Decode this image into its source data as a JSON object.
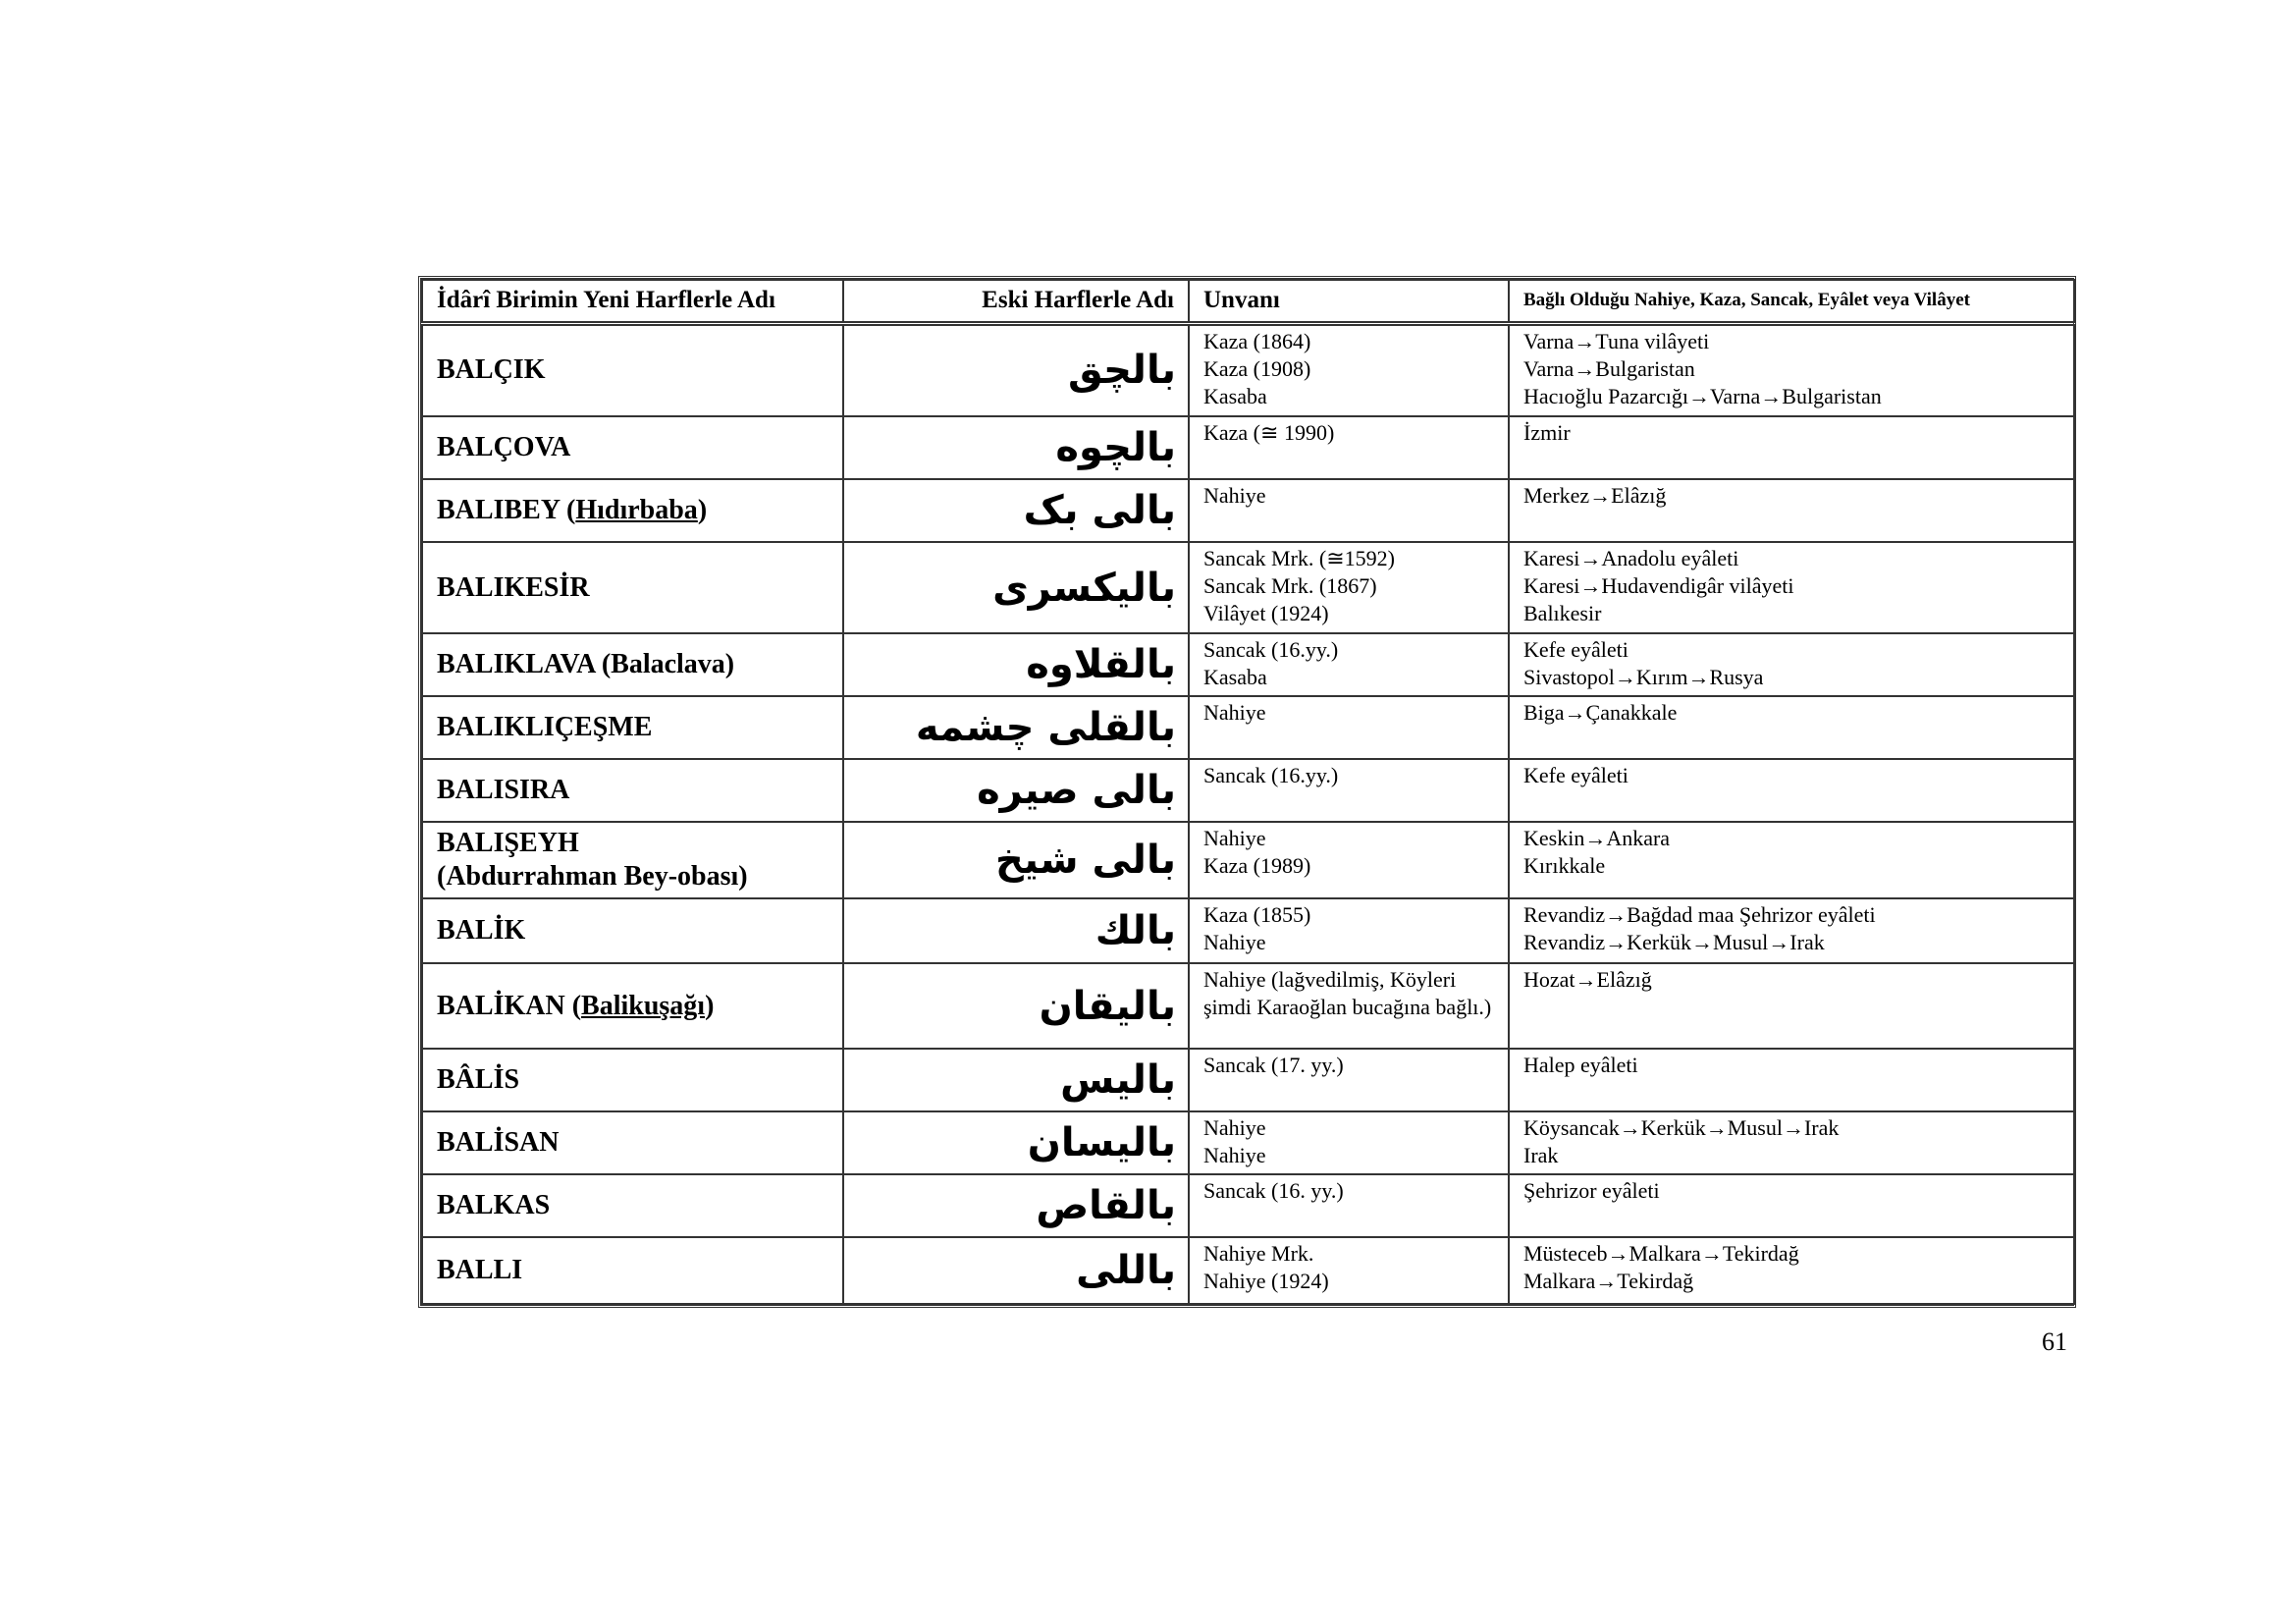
{
  "table": {
    "headers": [
      "İdârî Birimin Yeni Harflerle Adı",
      "Eski Harflerle Adı",
      "Unvanı",
      "Bağlı Olduğu Nahiye, Kaza, Sancak, Eyâlet veya Vilâyet"
    ],
    "rows": [
      {
        "name": "BALÇIK",
        "alt": "",
        "arabic": "بالچق",
        "unvan": [
          "Kaza (1864)",
          "Kaza (1908)",
          "Kasaba"
        ],
        "bagli": [
          "Varna→Tuna vilâyeti",
          "Varna→Bulgaristan",
          "Hacıoğlu Pazarcığı→Varna→Bulgaristan"
        ]
      },
      {
        "name": "BALÇOVA",
        "alt": "",
        "arabic": "بالچوه",
        "unvan": [
          "Kaza (≅ 1990)"
        ],
        "bagli": [
          "İzmir"
        ]
      },
      {
        "name": "BALIBEY (",
        "alt": "Hıdırbaba",
        "alt_end": ")",
        "arabic": "بالی بک",
        "unvan": [
          "Nahiye"
        ],
        "bagli": [
          "Merkez→Elâzığ"
        ]
      },
      {
        "name": "BALIKESİR",
        "alt": "",
        "arabic": "بالیکسری",
        "unvan": [
          "Sancak Mrk. (≅1592)",
          "Sancak Mrk. (1867)",
          "Vilâyet (1924)"
        ],
        "bagli": [
          "Karesi→Anadolu eyâleti",
          "Karesi→Hudavendigâr vilâyeti",
          "Balıkesir"
        ]
      },
      {
        "name": "BALIKLAVA (Balaclava)",
        "alt": "",
        "arabic": "بالقلاوه",
        "unvan": [
          "Sancak (16.yy.)",
          "Kasaba"
        ],
        "bagli": [
          "Kefe eyâleti",
          "Sivastopol→Kırım→Rusya"
        ]
      },
      {
        "name": "BALIKLIÇEŞME",
        "alt": "",
        "arabic": "بالقلی چشمه",
        "unvan": [
          "Nahiye"
        ],
        "bagli": [
          "Biga→Çanakkale"
        ]
      },
      {
        "name": "BALISIRA",
        "alt": "",
        "arabic": "بالی صیره",
        "unvan": [
          "Sancak (16.yy.)"
        ],
        "bagli": [
          "Kefe eyâleti"
        ]
      },
      {
        "name": "BALIŞEYH",
        "name2": "(Abdurrahman Bey-obası)",
        "alt": "",
        "arabic": "بالی شیخ",
        "unvan": [
          "Nahiye",
          "Kaza (1989)"
        ],
        "bagli": [
          "Keskin→Ankara",
          "Kırıkkale"
        ]
      },
      {
        "name": "BALİK",
        "alt": "",
        "arabic": "بالك",
        "unvan": [
          "Kaza (1855)",
          "Nahiye"
        ],
        "bagli": [
          "Revandiz→Bağdad maa Şehrizor eyâleti",
          "Revandiz→Kerkük→Musul→Irak"
        ]
      },
      {
        "name": "BALİKAN (",
        "alt": "Balikuşağı",
        "alt_end": ")",
        "arabic": "بالیقان",
        "unvan": [
          "Nahiye (lağvedilmiş, Köyleri şimdi Karaoğlan bucağına bağlı.)"
        ],
        "bagli": [
          "Hozat→Elâzığ"
        ]
      },
      {
        "name": "BÂLİS",
        "alt": "",
        "arabic": "بالیس",
        "unvan": [
          "Sancak (17. yy.)"
        ],
        "bagli": [
          "Halep eyâleti"
        ]
      },
      {
        "name": "BALİSAN",
        "alt": "",
        "arabic": "بالیسان",
        "unvan": [
          "Nahiye",
          "Nahiye"
        ],
        "bagli": [
          "Köysancak→Kerkük→Musul→Irak",
          "Irak"
        ]
      },
      {
        "name": "BALKAS",
        "alt": "",
        "arabic": "بالقاص",
        "unvan": [
          "Sancak (16. yy.)"
        ],
        "bagli": [
          "Şehrizor eyâleti"
        ]
      },
      {
        "name": "BALLI",
        "alt": "",
        "arabic": "باللی",
        "unvan": [
          "Nahiye Mrk.",
          "Nahiye (1924)"
        ],
        "bagli": [
          "Müsteceb→Malkara→Tekirdağ",
          "Malkara→Tekirdağ"
        ]
      }
    ]
  },
  "page_number": "61"
}
